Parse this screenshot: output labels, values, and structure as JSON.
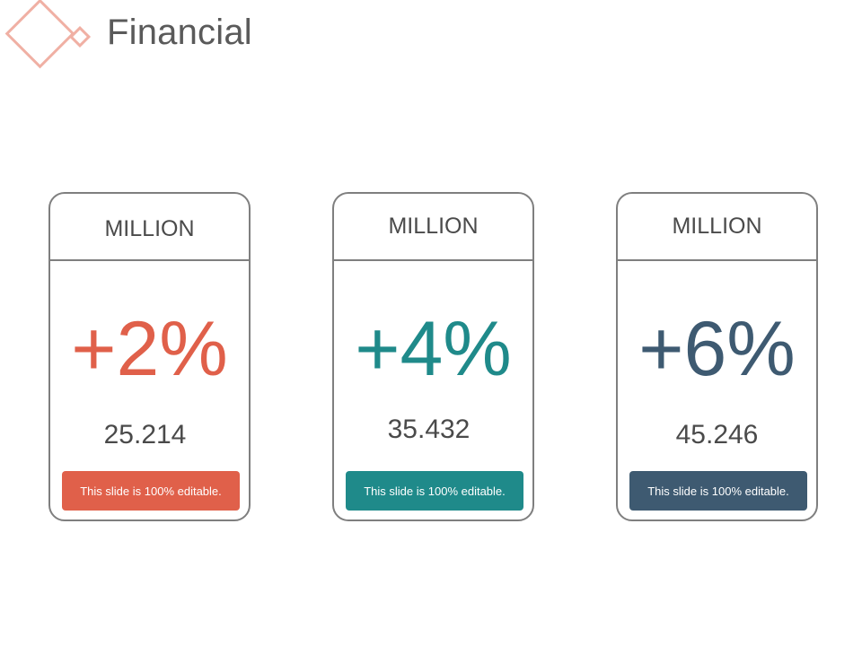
{
  "header": {
    "title": "Financial"
  },
  "colors": {
    "accent_orange": "#e0604a",
    "accent_teal": "#1f8a8a",
    "accent_navy": "#3e5a71",
    "logo": "#f0b0a4"
  },
  "cards": [
    {
      "label": "MILLION",
      "percent": "+2%",
      "value": "25.214",
      "button": "This slide is 100% editable."
    },
    {
      "label": "MILLION",
      "percent": "+4%",
      "value": "35.432",
      "button": "This slide is 100% editable."
    },
    {
      "label": "MILLION",
      "percent": "+6%",
      "value": "45.246",
      "button": "This slide is 100% editable."
    }
  ]
}
